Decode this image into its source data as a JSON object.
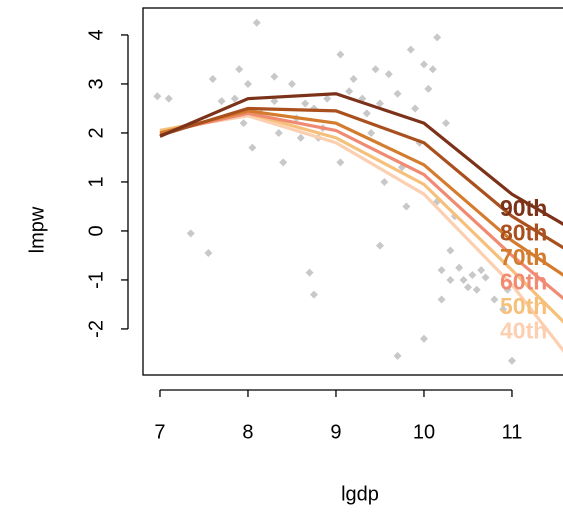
{
  "chart_data": {
    "type": "line",
    "x_label": "lgdp",
    "y_label": "lmpw",
    "xlim": [
      6.807,
      11.58
    ],
    "ylim": [
      -2.94,
      4.55
    ],
    "xticks": [
      7,
      8,
      9,
      10,
      11
    ],
    "yticks": [
      -2,
      -1,
      0,
      1,
      2,
      3,
      4
    ],
    "x": [
      7,
      8,
      9,
      10,
      11,
      12
    ],
    "series": [
      {
        "name": "90th",
        "color": "#7b3218",
        "values": [
          1.93,
          2.7,
          2.8,
          2.2,
          0.75,
          -0.3
        ]
      },
      {
        "name": "80th",
        "color": "#a9501e",
        "values": [
          1.95,
          2.5,
          2.45,
          1.8,
          0.3,
          -0.8
        ]
      },
      {
        "name": "70th",
        "color": "#d47c2e",
        "values": [
          2.0,
          2.45,
          2.2,
          1.35,
          -0.2,
          -1.4
        ]
      },
      {
        "name": "60th",
        "color": "#f08a72",
        "values": [
          2.0,
          2.4,
          2.05,
          1.15,
          -0.5,
          -2.0
        ]
      },
      {
        "name": "50th",
        "color": "#f6c07a",
        "values": [
          2.05,
          2.4,
          1.9,
          0.95,
          -0.8,
          -2.6
        ]
      },
      {
        "name": "40th",
        "color": "#fbcfb0",
        "values": [
          2.05,
          2.35,
          1.8,
          0.75,
          -1.1,
          -3.4
        ]
      }
    ],
    "scatter": {
      "color": "#c8c8c8",
      "x": [
        6.97,
        7.1,
        7.35,
        7.55,
        7.6,
        7.7,
        7.85,
        7.9,
        7.95,
        8.0,
        8.05,
        8.1,
        8.15,
        8.3,
        8.3,
        8.35,
        8.4,
        8.5,
        8.55,
        8.6,
        8.65,
        8.7,
        8.75,
        8.8,
        8.75,
        8.85,
        8.9,
        9.05,
        9.05,
        9.15,
        9.2,
        9.3,
        9.35,
        9.4,
        9.45,
        9.5,
        9.55,
        9.6,
        9.7,
        9.7,
        9.75,
        9.8,
        9.85,
        9.9,
        9.95,
        10.0,
        10.05,
        10.1,
        10.15,
        10.15,
        10.2,
        10.25,
        10.3,
        10.35,
        10.4,
        10.45,
        10.5,
        10.55,
        10.6,
        10.65,
        10.7,
        10.8,
        10.9,
        10.95,
        10.0,
        10.2,
        11.0,
        10.3,
        9.5
      ],
      "y": [
        2.75,
        2.7,
        -0.05,
        -0.45,
        3.1,
        2.65,
        2.7,
        3.3,
        2.2,
        3.0,
        1.7,
        4.25,
        2.4,
        3.15,
        2.65,
        2.0,
        1.4,
        3.0,
        2.3,
        1.9,
        2.6,
        -0.85,
        2.5,
        1.9,
        -1.3,
        2.1,
        2.7,
        3.6,
        1.4,
        2.85,
        3.1,
        2.7,
        2.4,
        2.0,
        3.3,
        2.6,
        1.0,
        3.2,
        2.8,
        -2.55,
        1.3,
        0.5,
        3.7,
        2.5,
        1.8,
        3.4,
        2.9,
        3.3,
        3.95,
        0.6,
        -0.8,
        2.2,
        -1.0,
        0.3,
        -0.75,
        -1.0,
        -1.15,
        -0.9,
        -1.2,
        -0.8,
        -0.95,
        -1.4,
        -1.6,
        -1.2,
        -2.2,
        -1.4,
        -2.65,
        -0.4,
        -0.3
      ]
    }
  }
}
